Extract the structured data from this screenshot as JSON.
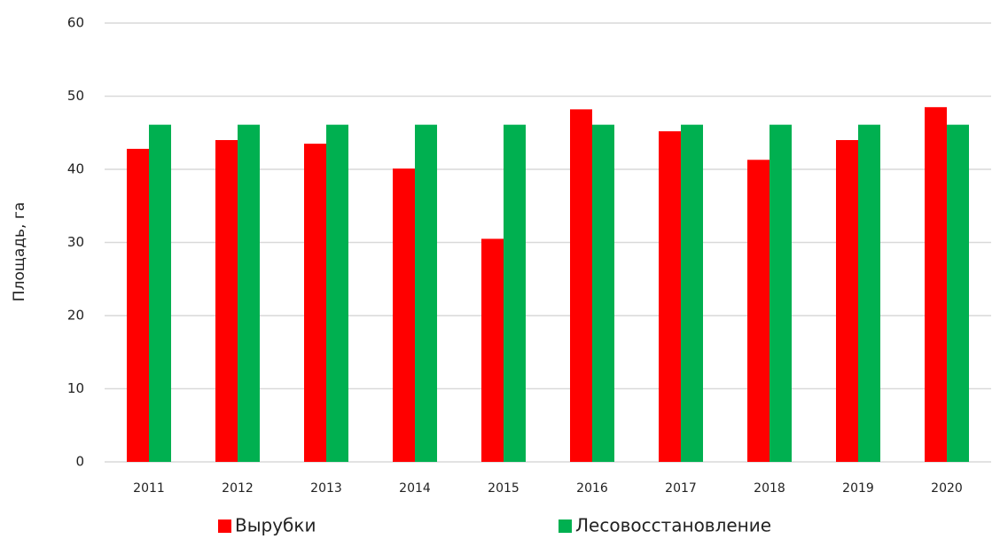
{
  "chart_data": {
    "type": "bar",
    "y_label": "Площадь, га",
    "categories": [
      "2011",
      "2012",
      "2013",
      "2014",
      "2015",
      "2016",
      "2017",
      "2018",
      "2019",
      "2020"
    ],
    "series": [
      {
        "name": "Вырубки",
        "color": "#ff0000",
        "values": [
          42.8,
          44.0,
          43.5,
          40.1,
          30.5,
          48.2,
          45.2,
          41.3,
          44.0,
          48.5
        ]
      },
      {
        "name": "Лесовосстановление",
        "color": "#00b050",
        "values": [
          46.1,
          46.1,
          46.1,
          46.1,
          46.1,
          46.1,
          46.1,
          46.1,
          46.1,
          46.1
        ]
      }
    ],
    "ylim": [
      0,
      60
    ],
    "yticks": [
      0,
      10,
      20,
      30,
      40,
      50,
      60
    ],
    "grid": true,
    "legend": "bottom"
  }
}
